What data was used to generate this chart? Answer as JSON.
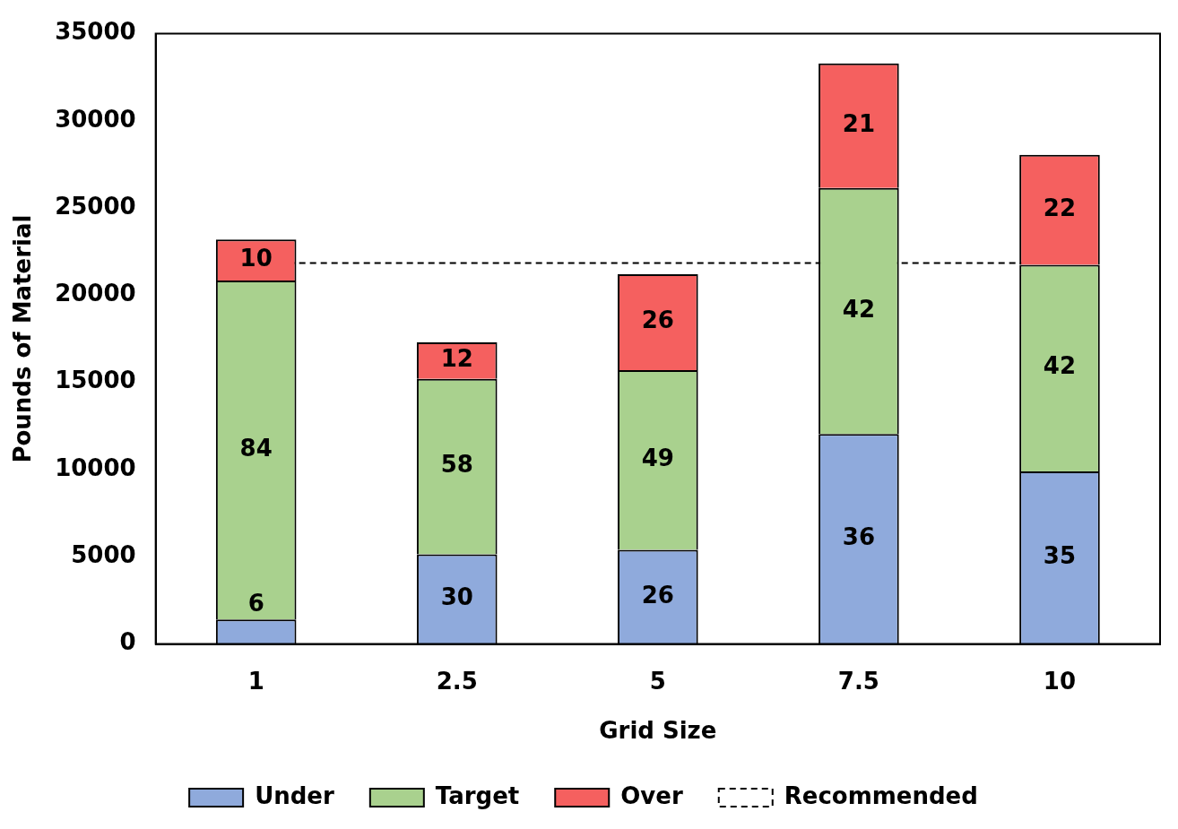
{
  "chart_data": {
    "type": "bar",
    "stacked": true,
    "xlabel": "Grid Size",
    "ylabel": "Pounds of Material",
    "categories": [
      "1",
      "2.5",
      "5",
      "7.5",
      "10"
    ],
    "series": [
      {
        "name": "Under",
        "color": "#8faadc",
        "values": [
          1400,
          5150,
          5400,
          12050,
          9900
        ]
      },
      {
        "name": "Target",
        "color": "#a9d18e",
        "values": [
          19450,
          10050,
          10300,
          14100,
          11850
        ]
      },
      {
        "name": "Over",
        "color": "#f5605f",
        "values": [
          2350,
          2100,
          5500,
          7150,
          6300
        ]
      }
    ],
    "annotations": [
      "6",
      "30",
      "26",
      "36",
      "35",
      "84",
      "58",
      "49",
      "42",
      "42",
      "10",
      "12",
      "26",
      "21",
      "22"
    ],
    "ref_lines": [
      {
        "axis": "y",
        "value": 21850,
        "label": "Recommended",
        "line_style": "dashed",
        "color": "#000000"
      }
    ],
    "ylim": [
      0,
      35000
    ],
    "yticks": [
      0,
      5000,
      10000,
      15000,
      20000,
      25000,
      30000,
      35000
    ],
    "grid": false,
    "legend": "bottom"
  }
}
